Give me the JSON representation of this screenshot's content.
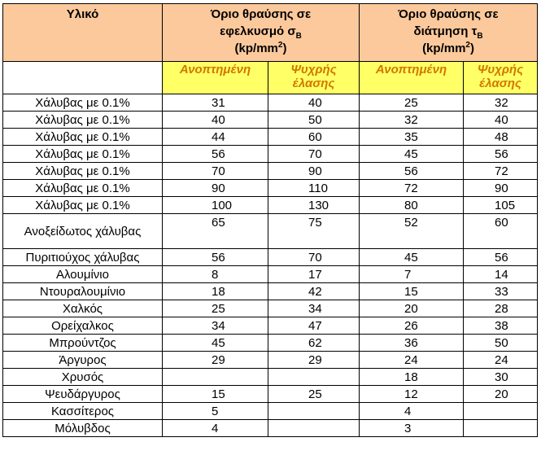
{
  "header": {
    "material": "Υλικό",
    "tensile": {
      "line1": "Όριο θραύσης σε",
      "line2": "εφελκυσμό σ",
      "symbol_sub": "B",
      "unit_pre": "(kp/mm",
      "unit_sup": "2",
      "unit_post": ")"
    },
    "shear": {
      "line1": "Όριο θραύσης σε",
      "line2": "διάτμηση τ",
      "symbol_sub": "B",
      "unit_pre": "(kp/mm",
      "unit_sup": "2",
      "unit_post": ")"
    },
    "sub": {
      "annealed": "Ανοπτημένη",
      "cold_line1": "Ψυχρής",
      "cold_line2": "έλασης"
    }
  },
  "rows": [
    {
      "name": "Χάλυβας με 0.1%",
      "ta": "31",
      "tc": "40",
      "sa": "25",
      "sc": "32"
    },
    {
      "name": "Χάλυβας με 0.1%",
      "ta": "40",
      "tc": "50",
      "sa": "32",
      "sc": "40"
    },
    {
      "name": "Χάλυβας με 0.1%",
      "ta": "44",
      "tc": "60",
      "sa": "35",
      "sc": "48"
    },
    {
      "name": "Χάλυβας με 0.1%",
      "ta": "56",
      "tc": "70",
      "sa": "45",
      "sc": "56"
    },
    {
      "name": "Χάλυβας με 0.1%",
      "ta": "70",
      "tc": "90",
      "sa": "56",
      "sc": "72"
    },
    {
      "name": "Χάλυβας με 0.1%",
      "ta": "90",
      "tc": "110",
      "sa": "72",
      "sc": "90"
    },
    {
      "name": "Χάλυβας με 0.1%",
      "ta": "100",
      "tc": "130",
      "sa": "80",
      "sc": "105"
    },
    {
      "name": "Ανοξείδωτος χάλυβας",
      "ta": "65",
      "tc": "75",
      "sa": "52",
      "sc": "60"
    },
    {
      "name": "Πυριτιούχος χάλυβας",
      "ta": "56",
      "tc": "70",
      "sa": "45",
      "sc": "56"
    },
    {
      "name": "Αλουμίνιο",
      "ta": "8",
      "tc": "17",
      "sa": "7",
      "sc": "14"
    },
    {
      "name": "Ντουραλουμίνιο",
      "ta": "18",
      "tc": "42",
      "sa": "15",
      "sc": "33"
    },
    {
      "name": "Χαλκός",
      "ta": "25",
      "tc": "34",
      "sa": "20",
      "sc": "28"
    },
    {
      "name": "Ορείχαλκος",
      "ta": "34",
      "tc": "47",
      "sa": "26",
      "sc": "38"
    },
    {
      "name": "Μπρούντζος",
      "ta": "45",
      "tc": "62",
      "sa": "36",
      "sc": "50"
    },
    {
      "name": "Άργυρος",
      "ta": "29",
      "tc": "29",
      "sa": "24",
      "sc": "24"
    },
    {
      "name": "Χρυσός",
      "ta": "",
      "tc": "",
      "sa": "18",
      "sc": "30"
    },
    {
      "name": "Ψευδάργυρος",
      "ta": "15",
      "tc": "25",
      "sa": "12",
      "sc": "20"
    },
    {
      "name": "Κασσίτερος",
      "ta": "5",
      "tc": "",
      "sa": "4",
      "sc": ""
    },
    {
      "name": "Μόλυβδος",
      "ta": "4",
      "tc": "",
      "sa": "3",
      "sc": ""
    }
  ]
}
